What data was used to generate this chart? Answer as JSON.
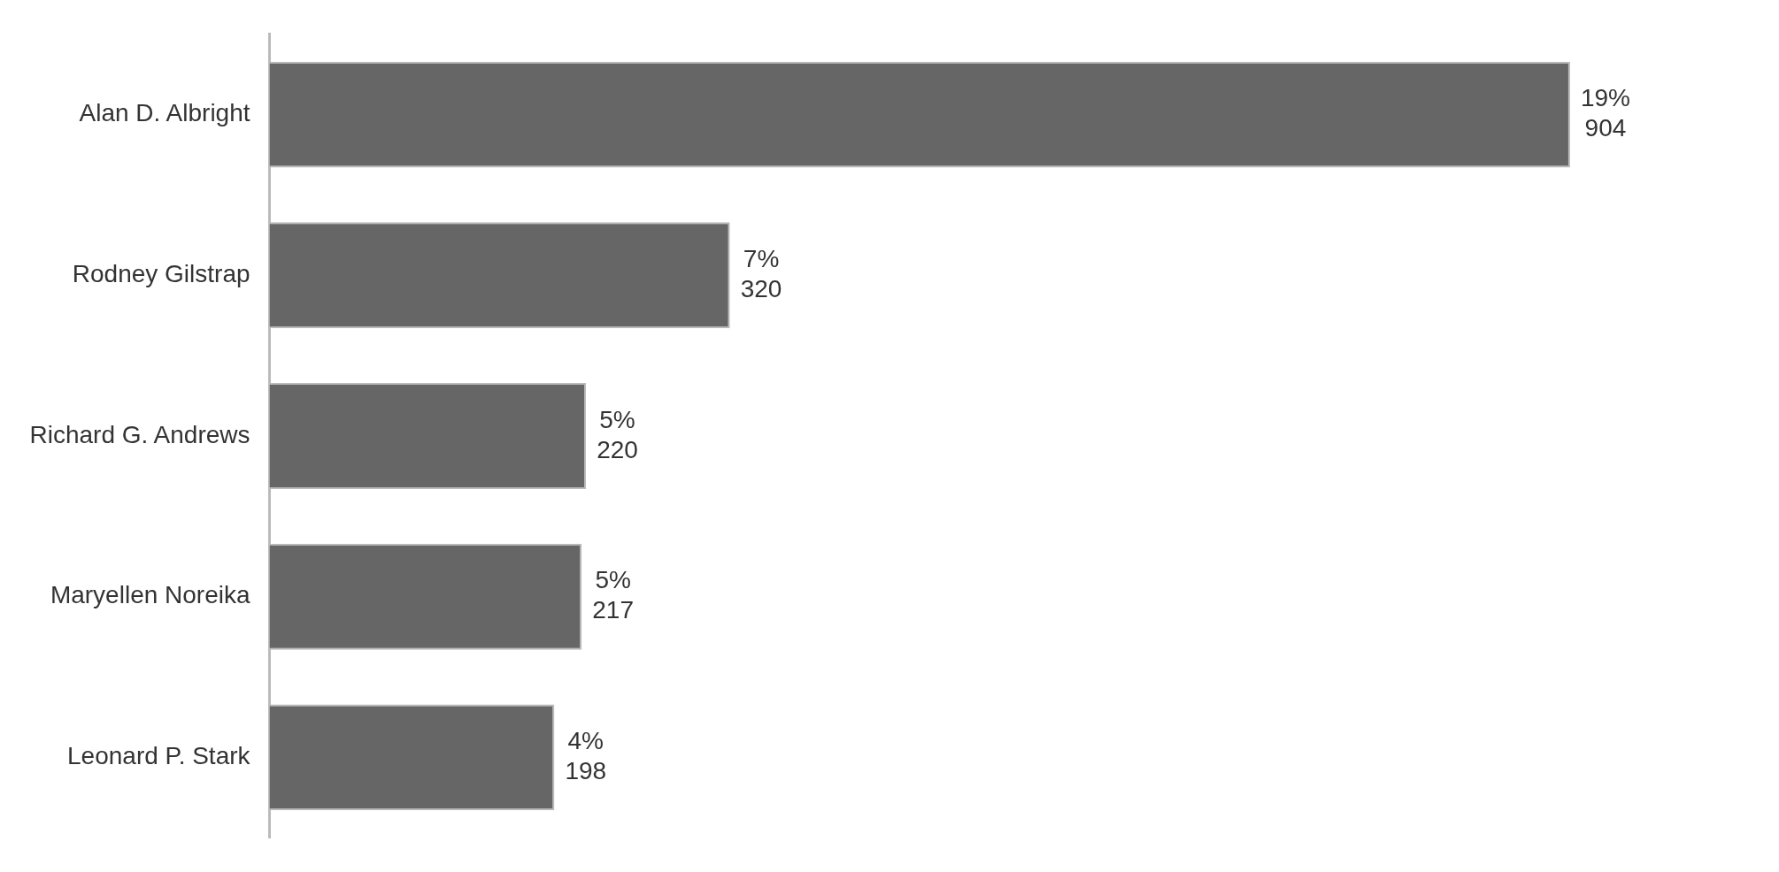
{
  "chart_data": {
    "type": "bar",
    "orientation": "horizontal",
    "categories": [
      "Alan D. Albright",
      "Rodney Gilstrap",
      "Richard G. Andrews",
      "Maryellen Noreika",
      "Leonard P. Stark"
    ],
    "values": [
      904,
      320,
      220,
      217,
      198
    ],
    "color": "#666666",
    "value_labels": [
      "19%\n904",
      "7%\n320",
      "5%\n220",
      "5%\n217",
      "4%\n198"
    ],
    "tick_labels": "y",
    "legend": false
  }
}
